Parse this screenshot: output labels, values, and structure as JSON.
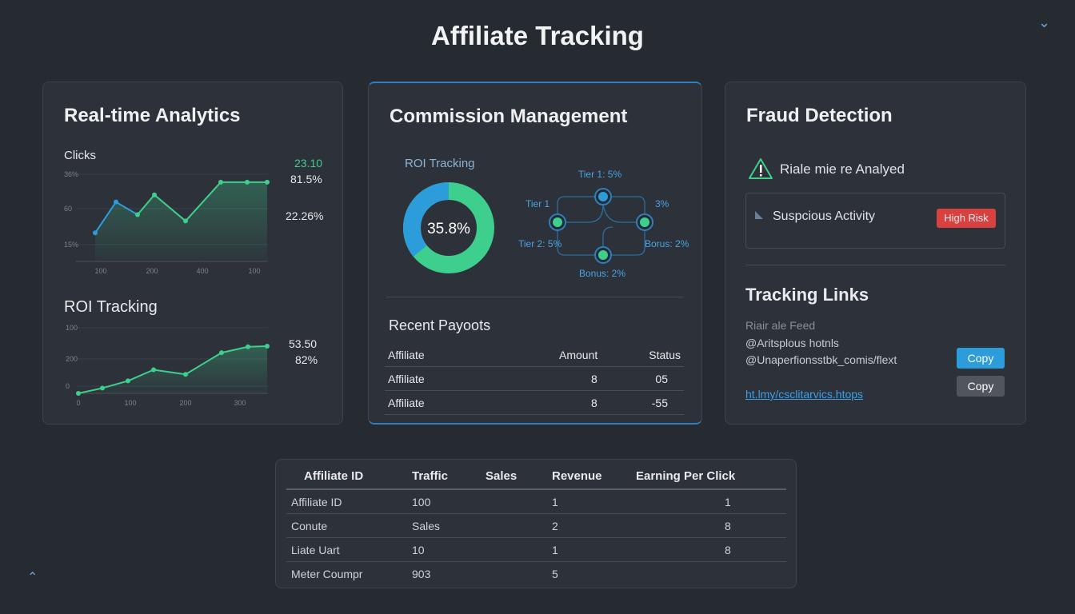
{
  "page": {
    "title": "Affiliate Tracking"
  },
  "colors": {
    "green": "#3ecf8e",
    "blue": "#2d9cdb",
    "red": "#d9413f",
    "bg": "#262a31",
    "card": "#2d3139"
  },
  "analytics": {
    "title": "Real-time Analytics",
    "clicks_label": "Clicks",
    "clicks_chart": {
      "type": "line",
      "y_ticks": [
        "36%",
        "60",
        "15%"
      ],
      "x_ticks": [
        "100",
        "200",
        "400",
        "100"
      ],
      "values": [
        36,
        75,
        59,
        84,
        51,
        100,
        100,
        100
      ],
      "ylim": [
        0,
        120
      ],
      "stat_green": "23.10",
      "stat_1": "81.5%",
      "stat_2": "22.26%"
    },
    "roi_label": "ROI Tracking",
    "roi_chart": {
      "type": "line",
      "y_ticks": [
        "100",
        "200",
        "0"
      ],
      "x_ticks": [
        "0",
        "100",
        "200",
        "300"
      ],
      "values": [
        0,
        8,
        19,
        36,
        29,
        62,
        71,
        72
      ],
      "ylim": [
        0,
        100
      ],
      "stat_1": "53.50",
      "stat_2": "82%"
    }
  },
  "commission": {
    "title": "Commission Management",
    "roi_label": "ROI Tracking",
    "donut_value": 35.8,
    "donut_label": "35.8%",
    "tiers": {
      "top": "Tier 1: 5%",
      "left": "Tier 1",
      "right": "3%",
      "left_bottom": "Tier 2: 5%",
      "right_bottom": "Borus: 2%",
      "bottom": "Bonus: 2%"
    },
    "payouts_title": "Recent Payoots",
    "payouts_headers": [
      "Affiliate",
      "Amount",
      "Status"
    ],
    "payouts_rows": [
      [
        "Affiliate",
        "8",
        "05"
      ],
      [
        "Affiliate",
        "8",
        "-55"
      ]
    ]
  },
  "fraud": {
    "title": "Fraud Detection",
    "alert_text": "Riale mie re Analyed",
    "activity_label": "Suspcious Activity",
    "risk_badge": "High Risk",
    "links_title": "Tracking Links",
    "feed_label": "Riair ale Feed",
    "line1": "@Aritsplous hotnls",
    "line2": "@Unaperfionsstbk_comis/flext",
    "link": "ht.lmy/csclitarvics.htops",
    "copy1": "Copy",
    "copy2": "Copy"
  },
  "table": {
    "headers": [
      "Affiliate ID",
      "Traffic",
      "Sales",
      "Revenue",
      "Earning Per Click"
    ],
    "rows": [
      [
        "Affiliate ID",
        "100",
        "",
        "1",
        "1"
      ],
      [
        "Conute",
        "Sales",
        "",
        "2",
        "8"
      ],
      [
        "Liate Uart",
        "10",
        "",
        "1",
        "8"
      ],
      [
        "Meter Coumpr",
        "903",
        "",
        "5",
        ""
      ]
    ]
  }
}
